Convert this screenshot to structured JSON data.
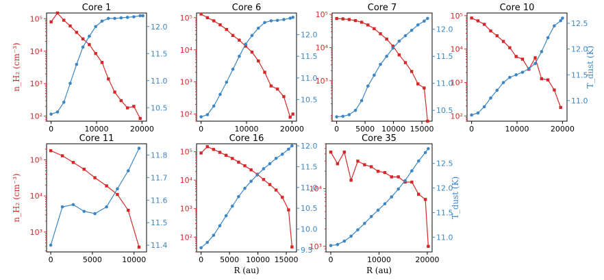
{
  "figure": {
    "colors": {
      "density": "#d62728",
      "temperature": "#3b86c4",
      "axis": "#000000"
    },
    "left_axis_label": "n_H₂ (cm⁻³)",
    "right_axis_label": "T_dust (K)",
    "x_axis_label": "R (au)"
  },
  "chart_data": [
    {
      "type": "line",
      "title": "Core 1",
      "xlabel": "",
      "ylabel_left": "n_H₂ (cm⁻³)",
      "ylabel_right": "",
      "xlim": [
        -1000,
        21000
      ],
      "xticks": [
        0,
        10000,
        20000
      ],
      "ylim_left": [
        70,
        150000
      ],
      "yscale_left": "log",
      "yticks_left": [
        100,
        1000,
        10000,
        100000
      ],
      "ylim_right": [
        10.25,
        12.25
      ],
      "yticks_right": [
        10.5,
        11.0,
        11.5,
        12.0
      ],
      "series": [
        {
          "name": "density",
          "marker": "square",
          "x": [
            0,
            1400,
            2800,
            4200,
            5600,
            7000,
            8400,
            9800,
            11200,
            12600,
            14000,
            15400,
            16800,
            18200,
            19600
          ],
          "y": [
            80000,
            150000,
            90000,
            60000,
            38000,
            24000,
            16000,
            8500,
            4500,
            1400,
            550,
            300,
            180,
            200,
            85
          ]
        },
        {
          "name": "temperature",
          "marker": "circle",
          "x": [
            0,
            1400,
            2800,
            4200,
            5600,
            7000,
            8400,
            9800,
            11200,
            12600,
            14000,
            15400,
            16800,
            18200,
            19600,
            20200
          ],
          "y": [
            10.38,
            10.42,
            10.6,
            10.95,
            11.3,
            11.62,
            11.82,
            12.0,
            12.1,
            12.15,
            12.15,
            12.16,
            12.17,
            12.18,
            12.2,
            12.2
          ]
        }
      ]
    },
    {
      "type": "line",
      "title": "Core 6",
      "xlabel": "",
      "ylabel_left": "",
      "ylabel_right": "",
      "xlim": [
        -1000,
        21000
      ],
      "xticks": [
        0,
        10000,
        20000
      ],
      "ylim_left": [
        60,
        140000
      ],
      "yscale_left": "log",
      "yticks_left": [
        100,
        1000,
        10000,
        100000
      ],
      "ylim_right": [
        10.0,
        12.5
      ],
      "yticks_right": [
        10.5,
        11.0,
        11.5,
        12.0
      ],
      "series": [
        {
          "name": "density",
          "marker": "square",
          "x": [
            0,
            1400,
            2800,
            4200,
            5600,
            7000,
            8400,
            9800,
            11200,
            12600,
            14000,
            15400,
            16800,
            18200,
            19600,
            20200
          ],
          "y": [
            130000,
            100000,
            80000,
            60000,
            43000,
            28000,
            20000,
            13000,
            8500,
            4500,
            2000,
            750,
            600,
            350,
            80,
            100
          ]
        },
        {
          "name": "temperature",
          "marker": "circle",
          "x": [
            0,
            1400,
            2800,
            4200,
            5600,
            7000,
            8400,
            9800,
            11200,
            12600,
            14000,
            15400,
            16800,
            18200,
            19600,
            20200
          ],
          "y": [
            10.1,
            10.15,
            10.35,
            10.62,
            10.9,
            11.2,
            11.5,
            11.78,
            11.98,
            12.15,
            12.28,
            12.32,
            12.33,
            12.35,
            12.38,
            12.4
          ]
        }
      ]
    },
    {
      "type": "line",
      "title": "Core 7",
      "xlabel": "",
      "ylabel_left": "",
      "ylabel_right": "",
      "xlim": [
        -800,
        16800
      ],
      "xticks": [
        0,
        5000,
        10000,
        15000
      ],
      "ylim_left": [
        60,
        110000
      ],
      "yscale_left": "log",
      "yticks_left": [
        1000,
        10000,
        100000
      ],
      "ylim_right": [
        10.3,
        12.3
      ],
      "yticks_right": [
        10.5,
        11.0,
        11.5,
        12.0
      ],
      "series": [
        {
          "name": "density",
          "marker": "square",
          "x": [
            0,
            1100,
            2200,
            3300,
            4400,
            5500,
            6600,
            7700,
            8800,
            9900,
            11000,
            12100,
            13200,
            14300,
            15400,
            16000
          ],
          "y": [
            75000,
            73000,
            70000,
            65000,
            58000,
            48000,
            37000,
            26000,
            18000,
            11000,
            6000,
            3500,
            1900,
            800,
            600,
            60
          ]
        },
        {
          "name": "temperature",
          "marker": "circle",
          "x": [
            0,
            1100,
            2200,
            3300,
            4400,
            5500,
            6600,
            7700,
            8800,
            9900,
            11000,
            12100,
            13200,
            14300,
            15400,
            16000
          ],
          "y": [
            10.38,
            10.39,
            10.42,
            10.5,
            10.68,
            10.95,
            11.15,
            11.35,
            11.5,
            11.65,
            11.78,
            11.88,
            11.98,
            12.08,
            12.15,
            12.2
          ]
        }
      ]
    },
    {
      "type": "line",
      "title": "Core 10",
      "xlabel": "",
      "ylabel_left": "",
      "ylabel_right": "T_dust (K)",
      "xlim": [
        -1000,
        21000
      ],
      "xticks": [
        0,
        10000,
        20000
      ],
      "ylim_left": [
        70,
        120000
      ],
      "yscale_left": "log",
      "yticks_left": [
        100,
        1000,
        10000,
        100000
      ],
      "ylim_right": [
        10.6,
        12.7
      ],
      "yticks_right": [
        11.0,
        11.5,
        12.0,
        12.5
      ],
      "series": [
        {
          "name": "density",
          "marker": "square",
          "x": [
            0,
            1400,
            2800,
            4200,
            5600,
            7000,
            8400,
            9800,
            11200,
            12600,
            14000,
            15400,
            16800,
            18200,
            19600
          ],
          "y": [
            85000,
            70000,
            55000,
            35000,
            25000,
            17000,
            11000,
            6000,
            5000,
            2500,
            5500,
            1300,
            1200,
            600,
            180
          ]
        },
        {
          "name": "temperature",
          "marker": "circle",
          "x": [
            0,
            1400,
            2800,
            4200,
            5600,
            7000,
            8400,
            9800,
            11200,
            12600,
            14000,
            15400,
            16800,
            18200,
            19600,
            20000
          ],
          "y": [
            10.72,
            10.76,
            10.88,
            11.05,
            11.2,
            11.35,
            11.45,
            11.5,
            11.55,
            11.62,
            11.72,
            11.95,
            12.22,
            12.45,
            12.55,
            12.6
          ]
        }
      ]
    },
    {
      "type": "line",
      "title": "Core 11",
      "xlabel": "",
      "ylabel_left": "n_H₂ (cm⁻³)",
      "ylabel_right": "",
      "xlim": [
        -500,
        11500
      ],
      "xticks": [
        0,
        5000,
        10000
      ],
      "ylim_left": [
        280,
        280000
      ],
      "yscale_left": "log",
      "yticks_left": [
        1000,
        10000,
        100000
      ],
      "ylim_right": [
        11.37,
        11.85
      ],
      "yticks_right": [
        11.4,
        11.5,
        11.6,
        11.7,
        11.8
      ],
      "series": [
        {
          "name": "density",
          "marker": "square",
          "x": [
            0,
            1400,
            2700,
            4000,
            5300,
            6700,
            8000,
            9300,
            10600
          ],
          "y": [
            180000,
            130000,
            85000,
            55000,
            32000,
            19000,
            11000,
            4000,
            380
          ]
        },
        {
          "name": "temperature",
          "marker": "circle",
          "x": [
            0,
            1400,
            2700,
            4000,
            5300,
            6700,
            8000,
            9300,
            10600
          ],
          "y": [
            11.4,
            11.57,
            11.58,
            11.55,
            11.54,
            11.57,
            11.65,
            11.73,
            11.83
          ]
        }
      ]
    },
    {
      "type": "line",
      "title": "Core 16",
      "xlabel": "R (au)",
      "ylabel_left": "",
      "ylabel_right": "",
      "xlim": [
        -800,
        16800
      ],
      "xticks": [
        0,
        5000,
        10000,
        15000
      ],
      "ylim_left": [
        30,
        190000
      ],
      "yscale_left": "log",
      "yticks_left": [
        100,
        1000,
        10000,
        100000
      ],
      "ylim_right": [
        9.45,
        12.05
      ],
      "yticks_right": [
        9.5,
        10.0,
        10.5,
        11.0,
        11.5,
        12.0
      ],
      "series": [
        {
          "name": "density",
          "marker": "square",
          "x": [
            0,
            1100,
            2200,
            3300,
            4400,
            5500,
            6600,
            7700,
            8800,
            9900,
            11000,
            12100,
            13200,
            14300,
            15400,
            16000
          ],
          "y": [
            90000,
            150000,
            120000,
            95000,
            75000,
            58000,
            43000,
            32000,
            23000,
            16000,
            10500,
            7000,
            4500,
            2500,
            900,
            45
          ]
        },
        {
          "name": "temperature",
          "marker": "circle",
          "x": [
            0,
            1100,
            2200,
            3300,
            4400,
            5500,
            6600,
            7700,
            8800,
            9900,
            11000,
            12100,
            13200,
            14300,
            15400,
            16000
          ],
          "y": [
            9.55,
            9.68,
            9.85,
            10.08,
            10.32,
            10.55,
            10.78,
            10.98,
            11.15,
            11.3,
            11.45,
            11.57,
            11.7,
            11.8,
            11.92,
            12.0
          ]
        }
      ]
    },
    {
      "type": "line",
      "title": "Core 35",
      "xlabel": "R (au)",
      "ylabel_left": "",
      "ylabel_right": "T_dust (K)",
      "xlim": [
        -1000,
        21000
      ],
      "xticks": [
        0,
        10000,
        20000
      ],
      "ylim_left": [
        800,
        60000
      ],
      "yscale_left": "log",
      "yticks_left": [
        1000,
        10000
      ],
      "ylim_right": [
        10.7,
        12.9
      ],
      "yticks_right": [
        11.0,
        11.5,
        12.0,
        12.5
      ],
      "series": [
        {
          "name": "density",
          "marker": "square",
          "x": [
            0,
            1400,
            2800,
            4200,
            5600,
            7000,
            8400,
            9800,
            11200,
            12600,
            14000,
            15400,
            16800,
            18200,
            19600,
            20200
          ],
          "y": [
            43000,
            27000,
            43000,
            14000,
            30000,
            26000,
            24000,
            20000,
            19000,
            16000,
            16000,
            13000,
            13000,
            8000,
            6500,
            1000
          ]
        },
        {
          "name": "temperature",
          "marker": "circle",
          "x": [
            0,
            1400,
            2800,
            4200,
            5600,
            7000,
            8400,
            9800,
            11200,
            12600,
            14000,
            15400,
            16800,
            18200,
            19600,
            20200
          ],
          "y": [
            10.83,
            10.85,
            10.92,
            11.02,
            11.15,
            11.28,
            11.42,
            11.55,
            11.68,
            11.82,
            11.98,
            12.15,
            12.35,
            12.55,
            12.72,
            12.8
          ]
        }
      ]
    }
  ]
}
